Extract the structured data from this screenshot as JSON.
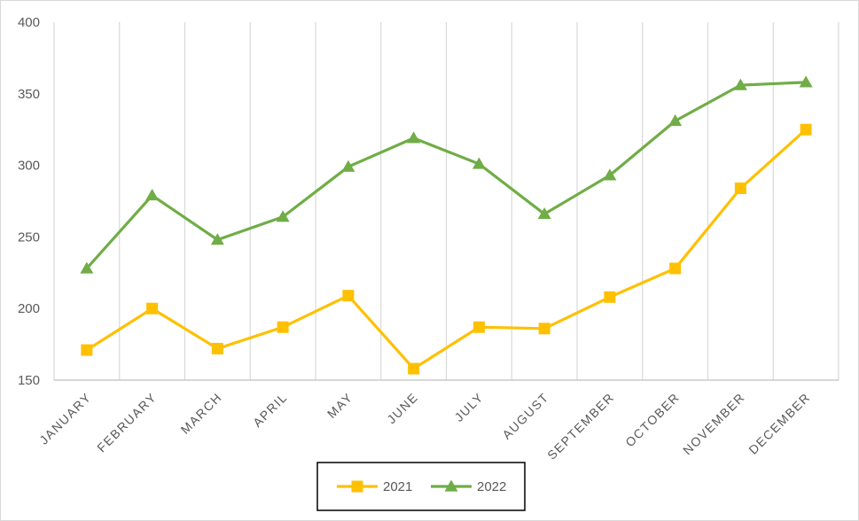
{
  "chart_data": {
    "type": "line",
    "categories": [
      "JANUARY",
      "FEBRUARY",
      "MARCH",
      "APRIL",
      "MAY",
      "JUNE",
      "JULY",
      "AUGUST",
      "SEPTEMBER",
      "OCTOBER",
      "NOVEMBER",
      "DECEMBER"
    ],
    "series": [
      {
        "name": "2021",
        "values": [
          171,
          200,
          172,
          187,
          209,
          158,
          187,
          186,
          208,
          228,
          284,
          325
        ],
        "color": "#FFC000",
        "marker": "square"
      },
      {
        "name": "2022",
        "values": [
          228,
          279,
          248,
          264,
          299,
          319,
          301,
          266,
          293,
          331,
          356,
          358
        ],
        "color": "#70AD47",
        "marker": "triangle"
      }
    ],
    "ylim": [
      150,
      400
    ],
    "yticks": [
      150,
      200,
      250,
      300,
      350,
      400
    ],
    "grid": "vertical",
    "legend": "bottom"
  }
}
